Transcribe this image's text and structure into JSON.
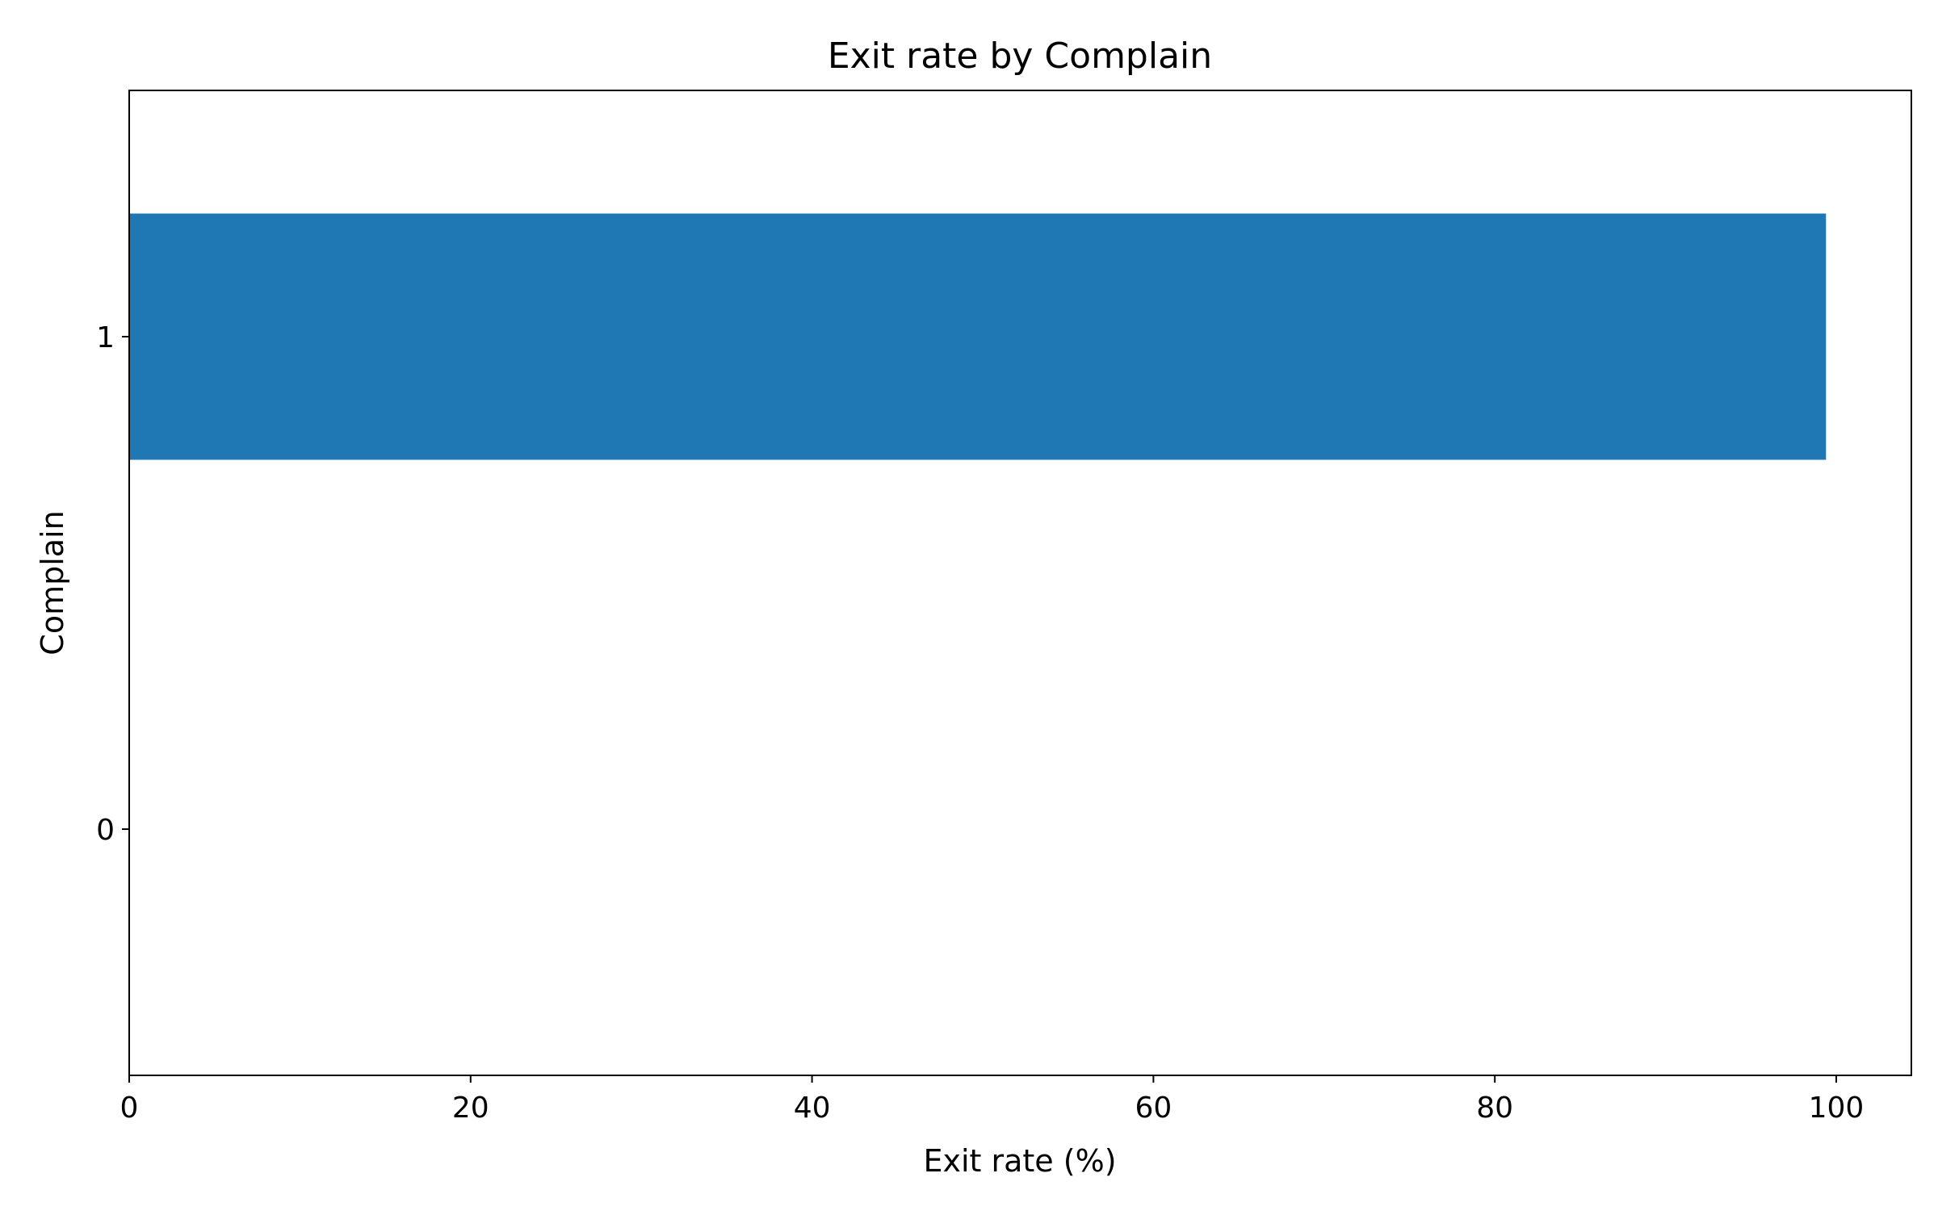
{
  "chart_data": {
    "type": "bar",
    "orientation": "horizontal",
    "title": "Exit rate by Complain",
    "xlabel": "Exit rate (%)",
    "ylabel": "Complain",
    "categories": [
      "0",
      "1"
    ],
    "series": [
      {
        "values": [
          0,
          99.4
        ],
        "color": "#1f77b4"
      }
    ],
    "xlim": [
      0,
      104.4
    ],
    "xticks": [
      "0",
      "20",
      "40",
      "60",
      "80",
      "100"
    ],
    "grid": false,
    "legend": "none"
  }
}
